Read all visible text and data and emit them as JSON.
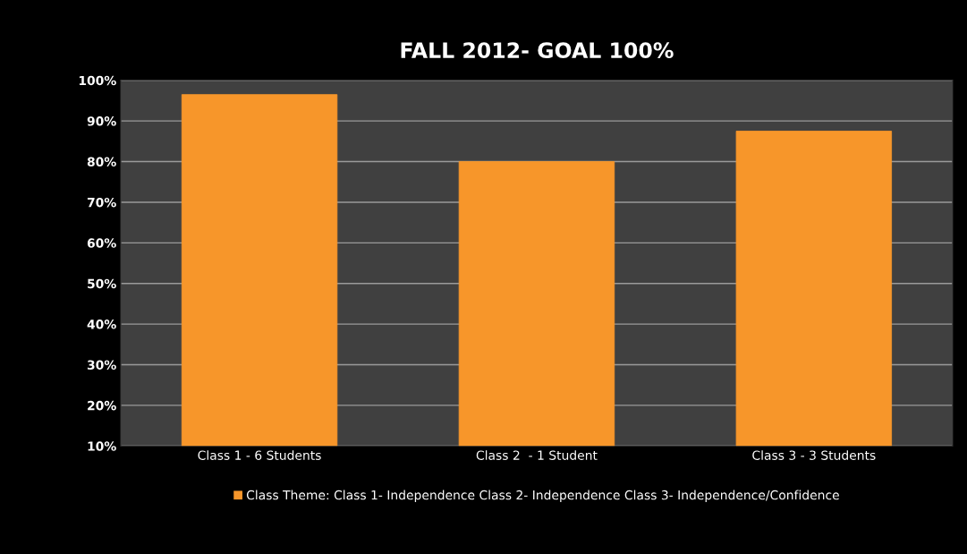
{
  "chart_data": {
    "type": "bar",
    "title": "FALL 2012- GOAL 100%",
    "categories": [
      "Class 1 - 6 Students",
      "Class 2  - 1 Student",
      "Class 3 - 3 Students"
    ],
    "series": [
      {
        "name": "Class Theme: Class 1- Independence Class 2- Independence Class 3- Independence/Confidence",
        "color": "#f7962a",
        "values": [
          96.5,
          80,
          87.5
        ]
      }
    ],
    "ylim": [
      10,
      100
    ],
    "yticks": [
      {
        "value": 10,
        "label": "10%"
      },
      {
        "value": 20,
        "label": "20%"
      },
      {
        "value": 30,
        "label": "30%"
      },
      {
        "value": 40,
        "label": "40%"
      },
      {
        "value": 50,
        "label": "50%"
      },
      {
        "value": 60,
        "label": "60%"
      },
      {
        "value": 70,
        "label": "70%"
      },
      {
        "value": 80,
        "label": "80%"
      },
      {
        "value": 90,
        "label": "90%"
      },
      {
        "value": 100,
        "label": "100%"
      }
    ],
    "grid": "y",
    "legend": "bottom"
  }
}
